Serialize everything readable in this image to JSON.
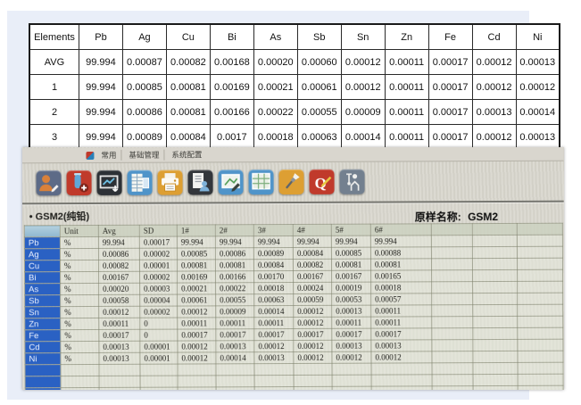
{
  "top_table": {
    "columns": [
      "Elements",
      "Pb",
      "Ag",
      "Cu",
      "Bi",
      "As",
      "Sb",
      "Sn",
      "Zn",
      "Fe",
      "Cd",
      "Ni"
    ],
    "rows": [
      {
        "label": "AVG",
        "values": [
          "99.994",
          "0.00087",
          "0.00082",
          "0.00168",
          "0.00020",
          "0.00060",
          "0.00012",
          "0.00011",
          "0.00017",
          "0.00012",
          "0.00013"
        ]
      },
      {
        "label": "1",
        "values": [
          "99.994",
          "0.00085",
          "0.00081",
          "0.00169",
          "0.00021",
          "0.00061",
          "0.00012",
          "0.00011",
          "0.00017",
          "0.00012",
          "0.00012"
        ]
      },
      {
        "label": "2",
        "values": [
          "99.994",
          "0.00086",
          "0.00081",
          "0.00166",
          "0.00022",
          "0.00055",
          "0.00009",
          "0.00011",
          "0.00017",
          "0.00013",
          "0.00014"
        ]
      },
      {
        "label": "3",
        "values": [
          "99.994",
          "0.00089",
          "0.00084",
          "0.0017",
          "0.00018",
          "0.00063",
          "0.00014",
          "0.00011",
          "0.00017",
          "0.00012",
          "0.00013"
        ]
      }
    ]
  },
  "software": {
    "menu": {
      "items": [
        "常用",
        "基础管理",
        "系统配置"
      ]
    },
    "toolbar": {
      "icons": [
        {
          "name": "user-edit-icon",
          "color": "#5d6b87"
        },
        {
          "name": "sample-add-icon",
          "color": "#c03a2b"
        },
        {
          "name": "chart-export-icon",
          "color": "#2d3136"
        },
        {
          "name": "spreadsheet-icon",
          "color": "#4f94c9"
        },
        {
          "name": "print-icon",
          "color": "#dd9f33"
        },
        {
          "name": "report-icon",
          "color": "#33363b"
        },
        {
          "name": "chart-edit-icon",
          "color": "#4f94c9"
        },
        {
          "name": "grid-view-icon",
          "color": "#4f94c9"
        },
        {
          "name": "tools-icon",
          "color": "#dd9f33"
        },
        {
          "name": "quality-check-icon",
          "color": "#c03a2b"
        },
        {
          "name": "instrument-icon",
          "color": "#73808f"
        }
      ]
    },
    "sample_title_prefix": "•",
    "sample_title": "GSM2(纯铅)",
    "original_name_label": "原样名称:",
    "original_name_value": "GSM2",
    "table": {
      "columns": [
        "Unit",
        "Avg",
        "SD",
        "1#",
        "2#",
        "3#",
        "4#",
        "5#",
        "6#"
      ],
      "rows": [
        {
          "element": "Pb",
          "unit": "%",
          "avg": "99.994",
          "sd": "0.00017",
          "samples": [
            "99.994",
            "99.994",
            "99.994",
            "99.994",
            "99.994",
            "99.994"
          ]
        },
        {
          "element": "Ag",
          "unit": "%",
          "avg": "0.00086",
          "sd": "0.00002",
          "samples": [
            "0.00085",
            "0.00086",
            "0.00089",
            "0.00084",
            "0.00085",
            "0.00088"
          ]
        },
        {
          "element": "Cu",
          "unit": "%",
          "avg": "0.00082",
          "sd": "0.00001",
          "samples": [
            "0.00081",
            "0.00081",
            "0.00084",
            "0.00082",
            "0.00081",
            "0.00081"
          ]
        },
        {
          "element": "Bi",
          "unit": "%",
          "avg": "0.00167",
          "sd": "0.00002",
          "samples": [
            "0.00169",
            "0.00166",
            "0.00170",
            "0.00167",
            "0.00167",
            "0.00165"
          ]
        },
        {
          "element": "As",
          "unit": "%",
          "avg": "0.00020",
          "sd": "0.00003",
          "samples": [
            "0.00021",
            "0.00022",
            "0.00018",
            "0.00024",
            "0.00019",
            "0.00018"
          ]
        },
        {
          "element": "Sb",
          "unit": "%",
          "avg": "0.00058",
          "sd": "0.00004",
          "samples": [
            "0.00061",
            "0.00055",
            "0.00063",
            "0.00059",
            "0.00053",
            "0.00057"
          ]
        },
        {
          "element": "Sn",
          "unit": "%",
          "avg": "0.00012",
          "sd": "0.00002",
          "samples": [
            "0.00012",
            "0.00009",
            "0.00014",
            "0.00012",
            "0.00013",
            "0.00011"
          ]
        },
        {
          "element": "Zn",
          "unit": "%",
          "avg": "0.00011",
          "sd": "0",
          "samples": [
            "0.00011",
            "0.00011",
            "0.00011",
            "0.00012",
            "0.00011",
            "0.00011"
          ]
        },
        {
          "element": "Fe",
          "unit": "%",
          "avg": "0.00017",
          "sd": "0",
          "samples": [
            "0.00017",
            "0.00017",
            "0.00017",
            "0.00017",
            "0.00017",
            "0.00017"
          ]
        },
        {
          "element": "Cd",
          "unit": "%",
          "avg": "0.00013",
          "sd": "0.00001",
          "samples": [
            "0.00012",
            "0.00013",
            "0.00012",
            "0.00012",
            "0.00013",
            "0.00013"
          ]
        },
        {
          "element": "Ni",
          "unit": "%",
          "avg": "0.00013",
          "sd": "0.00001",
          "samples": [
            "0.00012",
            "0.00014",
            "0.00013",
            "0.00012",
            "0.00012",
            "0.00012"
          ]
        }
      ]
    }
  },
  "colors": {
    "panel_bg": "#e9eef8",
    "photo_bg": "#d8d6ce",
    "element_column_blue": "#2a61c3",
    "corner_cell_blue": "#9cc1d6"
  }
}
